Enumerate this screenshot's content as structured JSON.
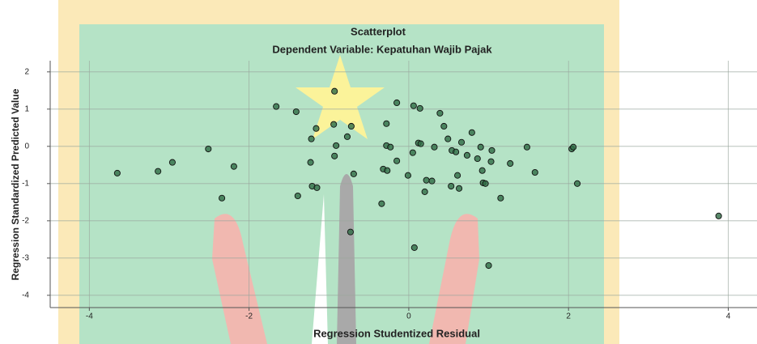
{
  "chart_data": {
    "type": "scatter",
    "title": "Scatterplot",
    "subtitle": "Dependent Variable: Kepatuhan Wajib Pajak",
    "x_label": "Regression Studentized Residual",
    "y_label": "Regression Standardized Predicted Value",
    "x": [
      -3.65,
      -3.14,
      -2.96,
      -2.51,
      -2.19,
      -2.34,
      -1.66,
      -1.41,
      -1.22,
      -1.16,
      -1.23,
      -1.21,
      -1.15,
      -1.39,
      -0.93,
      -0.94,
      -0.72,
      -0.77,
      -0.91,
      -0.93,
      -0.69,
      -0.73,
      -0.15,
      0.06,
      0.14,
      0.39,
      -0.28,
      0.44,
      0.79,
      -0.28,
      -0.23,
      0.12,
      0.15,
      0.32,
      0.49,
      0.66,
      0.54,
      0.59,
      0.73,
      0.9,
      1.04,
      0.86,
      1.03,
      0.05,
      -0.15,
      -0.32,
      -0.27,
      -0.01,
      0.22,
      0.29,
      0.61,
      0.92,
      0.93,
      0.96,
      0.53,
      0.63,
      0.2,
      -0.34,
      1.15,
      1.27,
      1.48,
      1.58,
      2.04,
      2.06,
      2.11,
      3.88,
      0.07,
      1.0
    ],
    "values": [
      -0.72,
      -0.67,
      -0.43,
      -0.07,
      -0.54,
      -1.39,
      1.07,
      0.93,
      0.2,
      0.48,
      -0.43,
      -1.07,
      -1.11,
      -1.33,
      1.48,
      0.59,
      0.54,
      0.26,
      0.02,
      -0.26,
      -0.74,
      -2.3,
      1.17,
      1.09,
      1.02,
      0.89,
      0.61,
      0.54,
      0.37,
      0.02,
      -0.02,
      0.09,
      0.07,
      -0.02,
      0.2,
      0.11,
      -0.11,
      -0.15,
      -0.24,
      -0.02,
      -0.11,
      -0.33,
      -0.41,
      -0.17,
      -0.39,
      -0.61,
      -0.65,
      -0.78,
      -0.91,
      -0.93,
      -0.78,
      -0.65,
      -0.98,
      -1.0,
      -1.07,
      -1.13,
      -1.22,
      -1.54,
      -1.39,
      -0.46,
      -0.02,
      -0.7,
      -0.07,
      -0.02,
      -1.0,
      -1.87,
      -2.72,
      -3.2
    ],
    "color": "#2f6b45",
    "xlim": [
      -4.49,
      4.36
    ],
    "xticks": [
      -4,
      -2,
      0,
      2,
      4
    ],
    "ylim": [
      -4.33,
      2.3
    ],
    "yticks": [
      -4,
      -3,
      -2,
      -1,
      0,
      1,
      2
    ],
    "grid": true
  }
}
